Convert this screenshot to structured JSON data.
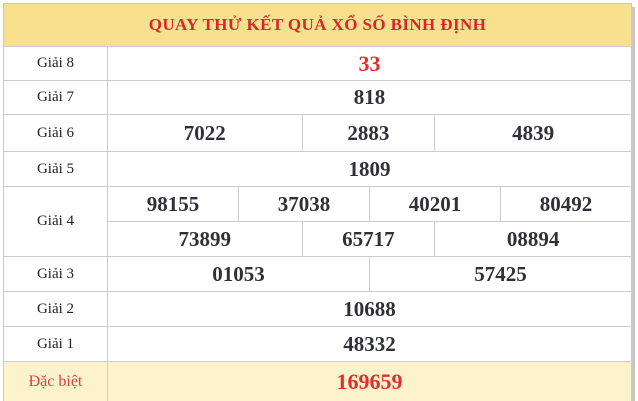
{
  "header": {
    "title": "QUAY THỬ KẾT QUẢ XỔ SỐ BÌNH ĐỊNH"
  },
  "table": {
    "rows": [
      {
        "label": "Giải 8",
        "lines": [
          [
            "33"
          ]
        ]
      },
      {
        "label": "Giải 7",
        "lines": [
          [
            "818"
          ]
        ]
      },
      {
        "label": "Giải 6",
        "lines": [
          [
            "7022",
            "2883",
            "4839"
          ]
        ]
      },
      {
        "label": "Giải 5",
        "lines": [
          [
            "1809"
          ]
        ]
      },
      {
        "label": "Giải 4",
        "lines": [
          [
            "98155",
            "37038",
            "40201",
            "80492"
          ],
          [
            "73899",
            "65717",
            "08894"
          ]
        ]
      },
      {
        "label": "Giải 3",
        "lines": [
          [
            "01053",
            "57425"
          ]
        ]
      },
      {
        "label": "Giải 2",
        "lines": [
          [
            "10688"
          ]
        ]
      },
      {
        "label": "Giải 1",
        "lines": [
          [
            "48332"
          ]
        ]
      },
      {
        "label": "Đặc biệt",
        "lines": [
          [
            "169659"
          ]
        ]
      }
    ]
  },
  "colors": {
    "header_background": "#f9e08e",
    "header_text": "#d8272b",
    "number_text": "#303138",
    "highlight_number_text": "#e12e2e",
    "special_row_background": "#fcf2cc",
    "grid_border": "#cccccc",
    "panel_shadow": "#c7c7c7"
  }
}
